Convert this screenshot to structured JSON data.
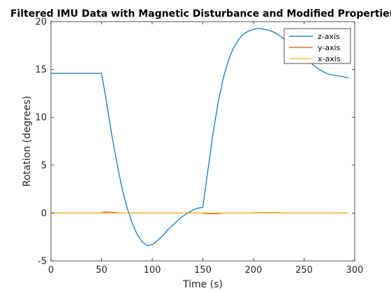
{
  "chart_data": {
    "type": "line",
    "title": "Filtered IMU Data with Magnetic Disturbance and Modified Properties",
    "xlabel": "Time (s)",
    "ylabel": "Rotation (degrees)",
    "xlim": [
      0,
      300
    ],
    "ylim": [
      -5,
      20
    ],
    "xticks": [
      0,
      50,
      100,
      150,
      200,
      250,
      300
    ],
    "yticks": [
      -5,
      0,
      5,
      10,
      15,
      20
    ],
    "xtick_labels": [
      "0",
      "50",
      "100",
      "150",
      "200",
      "250",
      "300"
    ],
    "ytick_labels": [
      "-5",
      "0",
      "5",
      "10",
      "15",
      "20"
    ],
    "grid": false,
    "legend_position": "top-right",
    "series": [
      {
        "name": "z-axis",
        "color": "#0072BD",
        "x": [
          0,
          49,
          50,
          55,
          60,
          65,
          70,
          75,
          80,
          85,
          90,
          95,
          100,
          105,
          110,
          115,
          120,
          125,
          130,
          135,
          140,
          145,
          150,
          155,
          160,
          165,
          170,
          175,
          180,
          185,
          190,
          195,
          200,
          205,
          210,
          213,
          215,
          220,
          225,
          230,
          235,
          240,
          245,
          250,
          255,
          260,
          265,
          270,
          275,
          280,
          285,
          290,
          294
        ],
        "y": [
          14.6,
          14.6,
          14.6,
          11.5,
          8.2,
          5.3,
          2.7,
          0.6,
          -1.0,
          -2.2,
          -3.0,
          -3.4,
          -3.3,
          -2.9,
          -2.4,
          -1.8,
          -1.3,
          -0.8,
          -0.35,
          0.0,
          0.3,
          0.5,
          0.6,
          4.5,
          8.3,
          11.5,
          14.0,
          15.9,
          17.2,
          18.1,
          18.7,
          19.0,
          19.2,
          19.3,
          19.2,
          19.15,
          19.1,
          18.9,
          18.6,
          18.2,
          17.8,
          17.3,
          16.8,
          16.3,
          15.8,
          15.4,
          15.0,
          14.7,
          14.5,
          14.4,
          14.3,
          14.2,
          14.1
        ]
      },
      {
        "name": "y-axis",
        "color": "#D95319",
        "x": [
          0,
          50,
          51,
          55,
          60,
          65,
          66,
          150,
          151,
          160,
          168,
          169,
          200,
          201,
          215,
          225,
          226,
          294
        ],
        "y": [
          0,
          0,
          0.08,
          0.12,
          0.08,
          0.04,
          0,
          0,
          -0.06,
          -0.07,
          -0.05,
          0,
          0,
          0.03,
          0.04,
          0.03,
          0,
          0
        ]
      },
      {
        "name": "x-axis",
        "color": "#EDB120",
        "x": [
          0,
          294
        ],
        "y": [
          0,
          0
        ]
      }
    ]
  }
}
